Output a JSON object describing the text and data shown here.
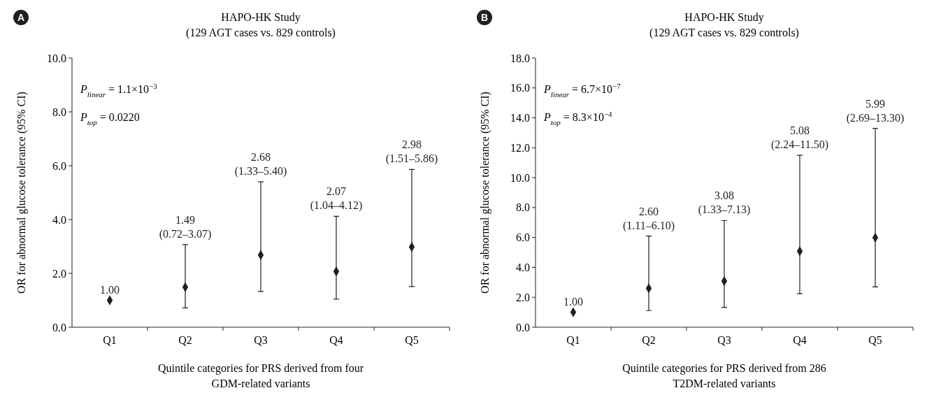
{
  "chart_data": [
    {
      "type": "scatter",
      "title": "HAPO-HK Study",
      "subtitle": "(129 AGT cases vs. 829 controls)",
      "xlabel": "Quintile categories for PRS derived from four GDM-related variants",
      "ylabel": "OR for abnormal glucose tolerance (95% CI)",
      "categories": [
        "Q1",
        "Q2",
        "Q3",
        "Q4",
        "Q5"
      ],
      "series": [
        {
          "color": "#231f20",
          "values": [
            1.0,
            1.49,
            2.68,
            2.07,
            2.98
          ],
          "errors": [
            null,
            [
              0.72,
              3.07
            ],
            [
              1.33,
              5.4
            ],
            [
              1.04,
              4.12
            ],
            [
              1.51,
              5.86
            ]
          ],
          "value_labels": [
            "1.00",
            null,
            null,
            null,
            null
          ]
        }
      ],
      "ylim": [
        0,
        10
      ],
      "yticks": [
        {
          "value": 0,
          "label": "0.0"
        },
        {
          "value": 2,
          "label": "2.0"
        },
        {
          "value": 4,
          "label": "4.0"
        },
        {
          "value": 6,
          "label": "6.0"
        },
        {
          "value": 8,
          "label": "8.0"
        },
        {
          "value": 10,
          "label": "10.0"
        }
      ],
      "marker": "diamond",
      "annotations": [
        "A",
        "P$_{linear}$ = 1.1×10$^{−3}$",
        "P$_{top}$ = 0.0220",
        {
          "text": "1.49 (0.72–3.07)",
          "x": "Q2",
          "y": 3.07
        },
        {
          "text": "2.68 (1.33–5.40)",
          "x": "Q3",
          "y": 5.4
        },
        {
          "text": "2.07 (1.04–4.12)",
          "x": "Q4",
          "y": 4.12
        },
        {
          "text": "2.98 (1.51–5.86)",
          "x": "Q5",
          "y": 5.86
        }
      ]
    },
    {
      "type": "scatter",
      "title": "HAPO-HK Study",
      "subtitle": "(129 AGT cases vs. 829 controls)",
      "xlabel": "Quintile categories for PRS derived from 286 T2DM-related variants",
      "ylabel": "OR for abnormal glucose tolerance (95% CI)",
      "categories": [
        "Q1",
        "Q2",
        "Q3",
        "Q4",
        "Q5"
      ],
      "series": [
        {
          "color": "#231f20",
          "values": [
            1.0,
            2.6,
            3.08,
            5.08,
            5.99
          ],
          "errors": [
            null,
            [
              1.11,
              6.1
            ],
            [
              1.33,
              7.13
            ],
            [
              2.24,
              11.5
            ],
            [
              2.69,
              13.3
            ]
          ],
          "value_labels": [
            "1.00",
            null,
            null,
            null,
            null
          ]
        }
      ],
      "ylim": [
        0,
        18
      ],
      "yticks": [
        {
          "value": 0,
          "label": "0.0"
        },
        {
          "value": 2,
          "label": "2.0"
        },
        {
          "value": 4,
          "label": "4.0"
        },
        {
          "value": 6,
          "label": "6.0"
        },
        {
          "value": 8,
          "label": "8.0"
        },
        {
          "value": 10,
          "label": "10.0"
        },
        {
          "value": 12,
          "label": "12.0"
        },
        {
          "value": 14,
          "label": "14.0"
        },
        {
          "value": 16,
          "label": "16.0"
        },
        {
          "value": 18,
          "label": "18.0"
        }
      ],
      "marker": "diamond",
      "annotations": [
        "B",
        "P$_{linear}$ = 6.7×10$^{−7}$",
        "P$_{top}$ = 8.3×10$^{−4}$",
        {
          "text": "2.60 (1.11–6.10)",
          "x": "Q2",
          "y": 6.1
        },
        {
          "text": "3.08 (1.33–7.13)",
          "x": "Q3",
          "y": 7.13
        },
        {
          "text": "5.08 (2.24–11.50)",
          "x": "Q4",
          "y": 11.5
        },
        {
          "text": "5.99 (2.69–13.30)",
          "x": "Q5",
          "y": 13.3
        }
      ]
    }
  ]
}
